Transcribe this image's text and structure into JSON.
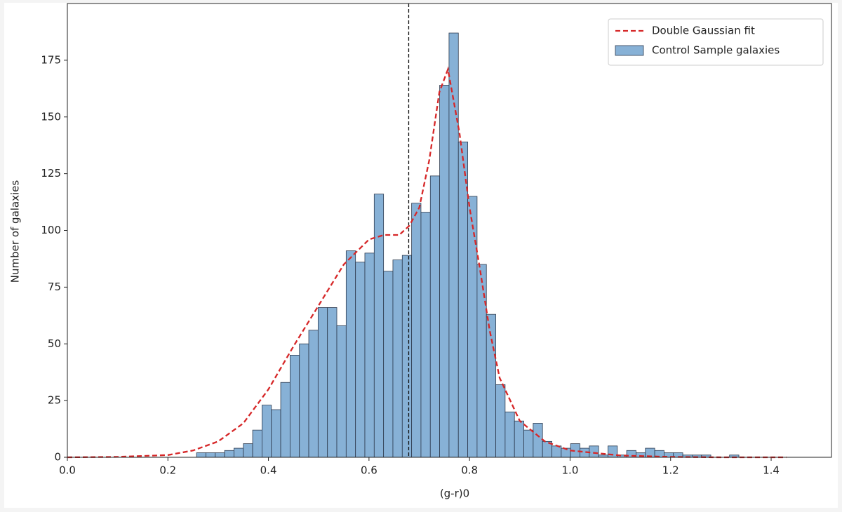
{
  "chart_data": {
    "type": "histogram",
    "xlabel": "(g-r)0",
    "ylabel": "Number of galaxies",
    "bins": [
      0.257,
      0.2756,
      0.2942,
      0.3128,
      0.3314,
      0.35,
      0.3686,
      0.3872,
      0.4058,
      0.4244,
      0.443,
      0.4616,
      0.4802,
      0.4988,
      0.5174,
      0.536,
      0.5546,
      0.5732,
      0.5918,
      0.6104,
      0.629,
      0.6476,
      0.6662,
      0.6848,
      0.7034,
      0.722,
      0.7406,
      0.7592,
      0.7778,
      0.7964,
      0.815,
      0.8336,
      0.8522,
      0.8708,
      0.8894,
      0.908,
      0.9266,
      0.9452,
      0.9638,
      0.9824,
      1.001,
      1.0196,
      1.0382,
      1.0568,
      1.0754,
      1.094,
      1.1126,
      1.1312,
      1.1498,
      1.1684,
      1.187,
      1.2056,
      1.2242,
      1.2428,
      1.2614,
      1.28,
      1.2986,
      1.3172,
      1.3358
    ],
    "series": [
      {
        "name": "Control Sample galaxies",
        "color": "#87b1d6",
        "edgecolor": "#2d3a4e",
        "values": [
          2,
          2,
          2,
          3,
          4,
          6,
          12,
          23,
          21,
          33,
          45,
          50,
          56,
          66,
          66,
          58,
          91,
          86,
          90,
          116,
          82,
          87,
          89,
          112,
          108,
          124,
          164,
          187,
          139,
          115,
          85,
          63,
          32,
          20,
          16,
          12,
          15,
          7,
          5,
          4,
          6,
          4,
          5,
          1,
          5,
          1,
          3,
          2,
          4,
          3,
          2,
          2,
          1,
          1,
          1,
          0,
          0,
          1
        ]
      }
    ],
    "fit": {
      "name": "Double Gaussian fit",
      "color": "#d62728",
      "x": [
        0,
        0.1,
        0.2,
        0.25,
        0.3,
        0.35,
        0.4,
        0.45,
        0.5,
        0.55,
        0.6,
        0.63,
        0.66,
        0.68,
        0.7,
        0.72,
        0.74,
        0.757,
        0.78,
        0.8,
        0.82,
        0.84,
        0.86,
        0.9,
        0.95,
        1.0,
        1.1,
        1.2,
        1.3,
        1.43
      ],
      "y": [
        0,
        0.2,
        1,
        3,
        7,
        15,
        30,
        49,
        67,
        85,
        96,
        98,
        98,
        102,
        110,
        131,
        161,
        171,
        143,
        110,
        84,
        56,
        35,
        16,
        7,
        3,
        0.8,
        0.2,
        0,
        0
      ]
    },
    "vline": 0.679,
    "xlim": [
      0,
      1.52
    ],
    "ylim": [
      0,
      200
    ],
    "xticks": [
      {
        "value": 0,
        "label": "0.0"
      },
      0.2,
      0.4,
      0.6,
      0.8,
      {
        "value": 1,
        "label": "1.0"
      },
      1.2,
      1.4
    ],
    "yticks": [
      0,
      25,
      50,
      75,
      100,
      125,
      150,
      175
    ],
    "legend": "upper right"
  }
}
